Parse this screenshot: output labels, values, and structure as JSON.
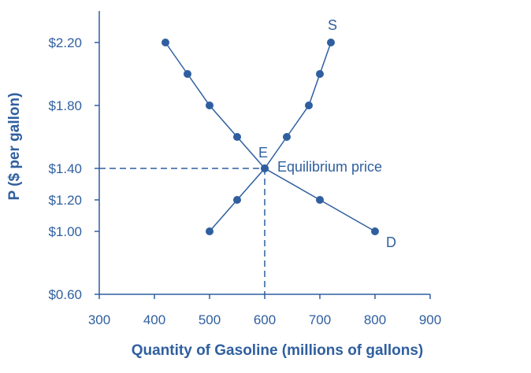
{
  "chart_data": {
    "type": "line",
    "xlabel": "Quantity of Gasoline (millions of gallons)",
    "ylabel": "P ($ per gallon)",
    "xlim": [
      300,
      900
    ],
    "ylim": [
      0.6,
      2.4
    ],
    "x_ticks": [
      {
        "value": 300,
        "label": "300"
      },
      {
        "value": 400,
        "label": "400"
      },
      {
        "value": 500,
        "label": "500"
      },
      {
        "value": 600,
        "label": "600"
      },
      {
        "value": 700,
        "label": "700"
      },
      {
        "value": 800,
        "label": "800"
      },
      {
        "value": 900,
        "label": "900"
      }
    ],
    "y_ticks": [
      {
        "value": 0.6,
        "label": "$0.60"
      },
      {
        "value": 1.0,
        "label": "$1.00"
      },
      {
        "value": 1.2,
        "label": "$1.20"
      },
      {
        "value": 1.4,
        "label": "$1.40"
      },
      {
        "value": 1.8,
        "label": "$1.80"
      },
      {
        "value": 2.2,
        "label": "$2.20"
      }
    ],
    "series": [
      {
        "name": "D",
        "points": [
          {
            "x": 420,
            "y": 2.2
          },
          {
            "x": 460,
            "y": 2.0
          },
          {
            "x": 500,
            "y": 1.8
          },
          {
            "x": 550,
            "y": 1.6
          },
          {
            "x": 600,
            "y": 1.4
          },
          {
            "x": 700,
            "y": 1.2
          },
          {
            "x": 800,
            "y": 1.0
          }
        ]
      },
      {
        "name": "S",
        "points": [
          {
            "x": 500,
            "y": 1.0
          },
          {
            "x": 550,
            "y": 1.2
          },
          {
            "x": 600,
            "y": 1.4
          },
          {
            "x": 640,
            "y": 1.6
          },
          {
            "x": 680,
            "y": 1.8
          },
          {
            "x": 700,
            "y": 2.0
          },
          {
            "x": 720,
            "y": 2.2
          }
        ]
      }
    ],
    "equilibrium": {
      "x": 600,
      "y": 1.4,
      "label": "E",
      "note": "Equilibrium price"
    },
    "grid": false,
    "colors": {
      "line": "#2f5f9f",
      "text": "#2f5f9f"
    }
  }
}
